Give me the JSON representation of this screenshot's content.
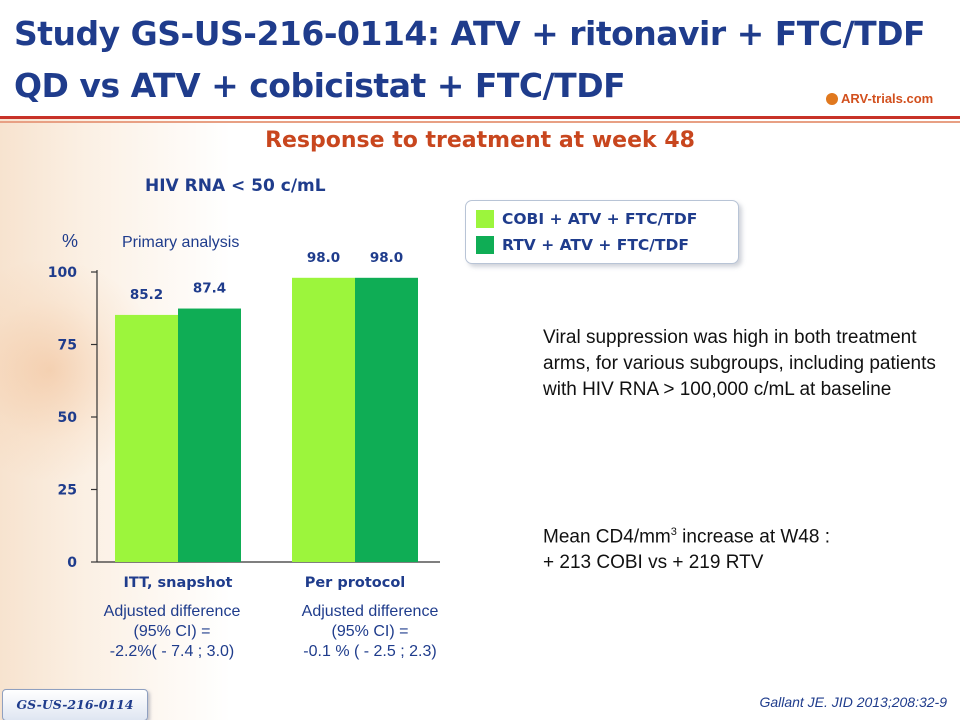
{
  "slide": {
    "title_line1": "Study GS-US-216-0114: ATV + ritonavir + FTC/TDF",
    "title_line2": "QD vs ATV + cobicistat + FTC/TDF",
    "logo_text": "ARV-trials.com",
    "subtitle": "Response to treatment at week 48",
    "primary_analysis": "Primary analysis",
    "adjusted_itt": [
      "Adjusted difference",
      "(95% CI) =",
      "-2.2%( - 7.4 ; 3.0)"
    ],
    "adjusted_pp": [
      "Adjusted difference",
      "(95% CI) =",
      "-0.1 % ( - 2.5 ; 2.3)"
    ],
    "note1": "Viral suppression was high in both treatment arms, for various subgroups, including patients with HIV RNA > 100,000 c/mL at baseline",
    "note2_prefix": "Mean CD4/mm",
    "note2_sup": "3",
    "note2_suffix": " increase at W48 :",
    "note2_line2": "+ 213 COBI vs + 219 RTV",
    "study_tag": "GS-US-216-0114",
    "citation": "Gallant JE. JID 2013;208:32-9"
  },
  "colors": {
    "title": "#1f3c8c",
    "subtitle": "#c8461e",
    "cobi": "#9cf53c",
    "rtv": "#0fad55"
  },
  "chart_data": {
    "type": "bar",
    "title": "HIV RNA < 50 c/mL",
    "ylabel": "%",
    "ylim": [
      0,
      100
    ],
    "yticks": [
      0,
      25,
      50,
      75,
      100
    ],
    "categories": [
      "ITT, snapshot",
      "Per protocol"
    ],
    "series": [
      {
        "name": "COBI + ATV + FTC/TDF",
        "color": "#9cf53c",
        "values": [
          85.2,
          98.0
        ],
        "labels": [
          "85.2",
          "98.0"
        ]
      },
      {
        "name": "RTV + ATV + FTC/TDF",
        "color": "#0fad55",
        "values": [
          87.4,
          98.0
        ],
        "labels": [
          "87.4",
          "98.0"
        ]
      }
    ],
    "grid": false,
    "legend": "top-right"
  }
}
